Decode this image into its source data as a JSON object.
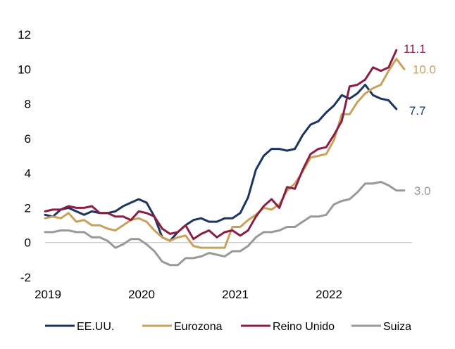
{
  "chart_data": {
    "type": "line",
    "title": "",
    "xlabel": "",
    "ylabel": "",
    "ylim": [
      -2,
      12
    ],
    "yticks": [
      -2,
      0,
      2,
      4,
      6,
      8,
      10,
      12
    ],
    "xlim": [
      "2019-01",
      "2022-12"
    ],
    "xticks": [
      {
        "label": "2019",
        "x": "2019-01"
      },
      {
        "label": "2020",
        "x": "2020-01"
      },
      {
        "label": "2021",
        "x": "2021-01"
      },
      {
        "label": "2022",
        "x": "2022-01"
      }
    ],
    "grid": false,
    "zero_line": true,
    "legend": "bottom",
    "x": [
      "2019-01",
      "2019-02",
      "2019-03",
      "2019-04",
      "2019-05",
      "2019-06",
      "2019-07",
      "2019-08",
      "2019-09",
      "2019-10",
      "2019-11",
      "2019-12",
      "2020-01",
      "2020-02",
      "2020-03",
      "2020-04",
      "2020-05",
      "2020-06",
      "2020-07",
      "2020-08",
      "2020-09",
      "2020-10",
      "2020-11",
      "2020-12",
      "2021-01",
      "2021-02",
      "2021-03",
      "2021-04",
      "2021-05",
      "2021-06",
      "2021-07",
      "2021-08",
      "2021-09",
      "2021-10",
      "2021-11",
      "2021-12",
      "2022-01",
      "2022-02",
      "2022-03",
      "2022-04",
      "2022-05",
      "2022-06",
      "2022-07",
      "2022-08",
      "2022-09",
      "2022-10",
      "2022-11"
    ],
    "series": [
      {
        "name": "EE.UU.",
        "color": "#1c3461",
        "end_label": "7.7",
        "values": [
          1.6,
          1.5,
          1.9,
          2.0,
          1.8,
          1.6,
          1.8,
          1.7,
          1.7,
          1.8,
          2.1,
          2.3,
          2.5,
          2.3,
          1.5,
          0.3,
          0.1,
          0.6,
          1.0,
          1.3,
          1.4,
          1.2,
          1.2,
          1.4,
          1.4,
          1.7,
          2.6,
          4.2,
          5.0,
          5.4,
          5.4,
          5.3,
          5.4,
          6.2,
          6.8,
          7.0,
          7.5,
          7.9,
          8.5,
          8.3,
          8.6,
          9.1,
          8.5,
          8.3,
          8.2,
          7.7,
          null
        ]
      },
      {
        "name": "Eurozona",
        "color": "#c9a15c",
        "end_label": "10.0",
        "values": [
          1.4,
          1.5,
          1.4,
          1.7,
          1.2,
          1.3,
          1.0,
          1.0,
          0.8,
          0.7,
          1.0,
          1.3,
          1.4,
          1.2,
          0.7,
          0.3,
          0.1,
          0.3,
          0.4,
          -0.2,
          -0.3,
          -0.3,
          -0.3,
          -0.3,
          0.9,
          0.9,
          1.3,
          1.6,
          2.0,
          1.9,
          2.2,
          3.0,
          3.4,
          4.1,
          4.9,
          5.0,
          5.1,
          5.9,
          7.4,
          7.4,
          8.1,
          8.6,
          8.9,
          9.1,
          9.9,
          10.6,
          10.0
        ]
      },
      {
        "name": "Reino Unido",
        "color": "#8b1e45",
        "end_label": "11.1",
        "values": [
          1.8,
          1.9,
          1.9,
          2.1,
          2.0,
          2.0,
          2.1,
          1.7,
          1.7,
          1.5,
          1.5,
          1.3,
          1.8,
          1.7,
          1.5,
          0.8,
          0.5,
          0.6,
          1.0,
          0.2,
          0.5,
          0.7,
          0.3,
          0.6,
          0.7,
          0.4,
          0.7,
          1.5,
          2.1,
          2.5,
          2.0,
          3.2,
          3.1,
          4.2,
          5.1,
          5.4,
          5.5,
          6.2,
          7.0,
          9.0,
          9.1,
          9.4,
          10.1,
          9.9,
          10.1,
          11.1,
          null
        ]
      },
      {
        "name": "Suiza",
        "color": "#999999",
        "end_label": "3.0",
        "values": [
          0.6,
          0.6,
          0.7,
          0.7,
          0.6,
          0.6,
          0.3,
          0.3,
          0.1,
          -0.3,
          -0.1,
          0.2,
          0.2,
          -0.1,
          -0.5,
          -1.1,
          -1.3,
          -1.3,
          -0.9,
          -0.9,
          -0.8,
          -0.6,
          -0.7,
          -0.8,
          -0.5,
          -0.5,
          -0.2,
          0.3,
          0.6,
          0.6,
          0.7,
          0.9,
          0.9,
          1.2,
          1.5,
          1.5,
          1.6,
          2.2,
          2.4,
          2.5,
          2.9,
          3.4,
          3.4,
          3.5,
          3.3,
          3.0,
          3.0
        ]
      }
    ]
  }
}
